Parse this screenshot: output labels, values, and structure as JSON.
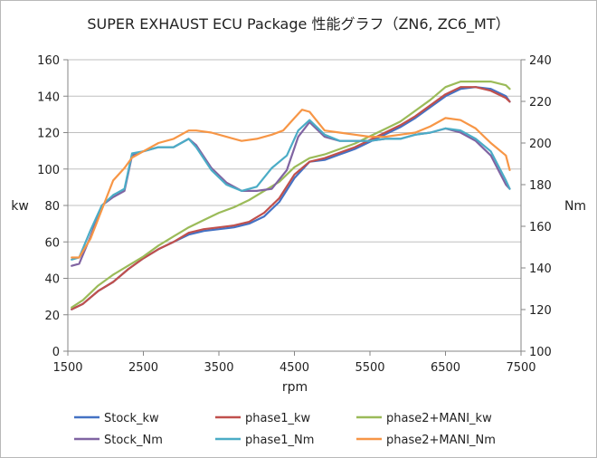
{
  "chart_data": {
    "type": "line",
    "title": "SUPER EXHAUST ECU Package 性能グラフ（ZN6, ZC6_MT）",
    "xlabel": "rpm",
    "ylabel_left": "kw",
    "ylabel_right": "Nm",
    "xlim": [
      1500,
      7500
    ],
    "ylim_left": [
      0,
      160
    ],
    "ylim_right": [
      100,
      240
    ],
    "x_ticks": [
      1500,
      2500,
      3500,
      4500,
      5500,
      6500,
      7500
    ],
    "y_ticks_left": [
      0,
      20,
      40,
      60,
      80,
      100,
      120,
      140,
      160
    ],
    "y_ticks_right": [
      100,
      120,
      140,
      160,
      180,
      200,
      220,
      240
    ],
    "grid": "horizontal",
    "legend_position": "bottom",
    "series": [
      {
        "name": "Stock_kw",
        "axis": "left",
        "color": "#4472C4",
        "x": [
          1550,
          1700,
          1900,
          2100,
          2300,
          2500,
          2700,
          2900,
          3100,
          3300,
          3500,
          3700,
          3900,
          4100,
          4300,
          4500,
          4700,
          4900,
          5100,
          5300,
          5500,
          5700,
          5900,
          6100,
          6300,
          6500,
          6700,
          6900,
          7100,
          7300,
          7350
        ],
        "y": [
          23,
          26,
          33,
          38,
          45,
          51,
          56,
          60,
          64,
          66,
          67,
          68,
          70,
          74,
          82,
          95,
          104,
          105,
          108,
          111,
          115,
          119,
          123,
          128,
          134,
          140,
          144,
          145,
          144,
          140,
          137
        ]
      },
      {
        "name": "phase1_kw",
        "axis": "left",
        "color": "#C0504D",
        "x": [
          1550,
          1700,
          1900,
          2100,
          2300,
          2500,
          2700,
          2900,
          3100,
          3300,
          3500,
          3700,
          3900,
          4100,
          4300,
          4500,
          4700,
          4900,
          5100,
          5300,
          5500,
          5700,
          5900,
          6100,
          6300,
          6500,
          6700,
          6900,
          7100,
          7300,
          7350
        ],
        "y": [
          23,
          26,
          33,
          38,
          45,
          51,
          56,
          60,
          65,
          67,
          68,
          69,
          71,
          76,
          84,
          97,
          104,
          106,
          109,
          112,
          116,
          120,
          124,
          129,
          135,
          141,
          145,
          145,
          143,
          139,
          137
        ]
      },
      {
        "name": "phase2+MANI_kw",
        "axis": "left",
        "color": "#9BBB59",
        "x": [
          1550,
          1700,
          1900,
          2100,
          2300,
          2500,
          2700,
          2900,
          3100,
          3300,
          3500,
          3700,
          3900,
          4100,
          4300,
          4500,
          4700,
          4900,
          5100,
          5300,
          5500,
          5700,
          5900,
          6100,
          6300,
          6500,
          6700,
          6900,
          7100,
          7300,
          7350
        ],
        "y": [
          24,
          28,
          36,
          42,
          47,
          52,
          58,
          63,
          68,
          72,
          76,
          79,
          83,
          88,
          93,
          101,
          106,
          108,
          111,
          114,
          118,
          122,
          126,
          132,
          138,
          145,
          148,
          148,
          148,
          146,
          144
        ]
      },
      {
        "name": "Stock_Nm",
        "axis": "right",
        "color": "#8064A2",
        "x": [
          1550,
          1650,
          1800,
          1950,
          2100,
          2250,
          2350,
          2500,
          2700,
          2900,
          3100,
          3200,
          3400,
          3600,
          3800,
          4000,
          4200,
          4400,
          4550,
          4700,
          4900,
          5100,
          5300,
          5500,
          5700,
          5900,
          6100,
          6300,
          6500,
          6700,
          6900,
          7100,
          7300,
          7350
        ],
        "y": [
          141,
          142,
          155,
          170,
          174,
          177,
          194,
          196,
          198,
          198,
          202,
          199,
          188,
          181,
          177,
          177,
          178,
          187,
          203,
          210,
          203,
          201,
          201,
          201,
          202,
          202,
          204,
          205,
          207,
          205,
          201,
          194,
          180,
          178
        ]
      },
      {
        "name": "phase1_Nm",
        "axis": "right",
        "color": "#4BACC6",
        "x": [
          1550,
          1650,
          1800,
          1950,
          2100,
          2250,
          2350,
          2500,
          2700,
          2900,
          3100,
          3200,
          3400,
          3600,
          3800,
          4000,
          4200,
          4400,
          4550,
          4700,
          4900,
          5100,
          5300,
          5500,
          5700,
          5900,
          6100,
          6300,
          6500,
          6700,
          6900,
          7100,
          7300,
          7350
        ],
        "y": [
          144,
          145,
          158,
          170,
          175,
          178,
          195,
          196,
          198,
          198,
          202,
          198,
          187,
          180,
          177,
          179,
          188,
          194,
          206,
          211,
          204,
          201,
          201,
          201,
          202,
          202,
          204,
          205,
          207,
          206,
          202,
          196,
          182,
          178
        ]
      },
      {
        "name": "phase2+MANI_Nm",
        "axis": "right",
        "color": "#F79646",
        "x": [
          1550,
          1650,
          1800,
          1950,
          2100,
          2250,
          2350,
          2500,
          2700,
          2900,
          3100,
          3200,
          3400,
          3600,
          3800,
          4000,
          4200,
          4350,
          4500,
          4600,
          4700,
          4900,
          5100,
          5300,
          5500,
          5700,
          5900,
          6100,
          6300,
          6500,
          6700,
          6900,
          7100,
          7300,
          7350
        ],
        "y": [
          145,
          145,
          154,
          168,
          182,
          188,
          193,
          196,
          200,
          202,
          206,
          206,
          205,
          203,
          201,
          202,
          204,
          206,
          212,
          216,
          215,
          206,
          205,
          204,
          203,
          203,
          204,
          205,
          208,
          212,
          211,
          207,
          200,
          194,
          187
        ]
      }
    ]
  }
}
